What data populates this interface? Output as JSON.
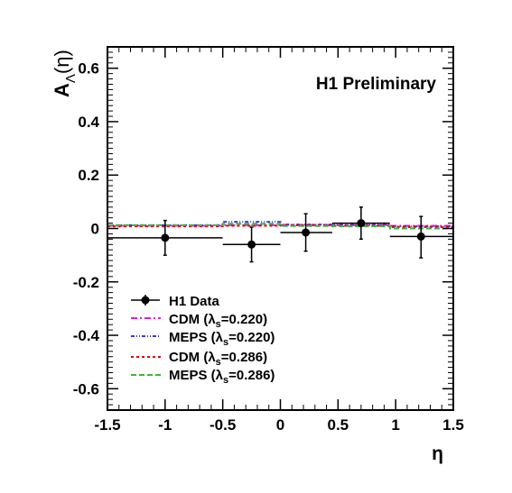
{
  "chart_data": {
    "type": "scatter",
    "annotation": "H1 Preliminary",
    "xlabel": "η",
    "ylabel_main": "A",
    "ylabel_sub": "Λ",
    "ylabel_arg": "(η)",
    "xlim": [
      -1.5,
      1.5
    ],
    "ylim": [
      -0.68,
      0.68
    ],
    "x_ticks": [
      -1.5,
      -1,
      -0.5,
      0,
      0.5,
      1,
      1.5
    ],
    "x_tick_labels": [
      "-1.5",
      "-1",
      "-0.5",
      "0",
      "0.5",
      "1",
      "1.5"
    ],
    "y_ticks": [
      -0.6,
      -0.4,
      -0.2,
      0,
      0.2,
      0.4,
      0.6
    ],
    "y_tick_labels": [
      "-0.6",
      "-0.4",
      "-0.2",
      "0",
      "0.2",
      "0.4",
      "0.6"
    ],
    "grid": false,
    "legend_position": "bottom-left",
    "data": {
      "name": "H1 Data",
      "points": [
        {
          "x": -1.0,
          "y": -0.035,
          "xlo": -1.5,
          "xhi": -0.5,
          "ylo": -0.1,
          "yhi": 0.03
        },
        {
          "x": -0.25,
          "y": -0.06,
          "xlo": -0.5,
          "xhi": 0.0,
          "ylo": -0.125,
          "yhi": 0.005
        },
        {
          "x": 0.22,
          "y": -0.015,
          "xlo": 0.0,
          "xhi": 0.45,
          "ylo": -0.085,
          "yhi": 0.055
        },
        {
          "x": 0.7,
          "y": 0.02,
          "xlo": 0.45,
          "xhi": 0.95,
          "ylo": -0.04,
          "yhi": 0.08
        },
        {
          "x": 1.22,
          "y": -0.03,
          "xlo": 0.95,
          "xhi": 1.5,
          "ylo": -0.11,
          "yhi": 0.045
        }
      ]
    },
    "series": [
      {
        "name": "CDM (λs=0.220)",
        "legend_main": "CDM (λ",
        "legend_sub": "s",
        "legend_tail": "=0.220)",
        "color": "#e020e0",
        "dash": "7,3,2,3",
        "bins": [
          [
            -1.5,
            -0.5,
            0.01
          ],
          [
            -0.5,
            0.0,
            0.012
          ],
          [
            0.0,
            0.45,
            0.013
          ],
          [
            0.45,
            0.95,
            0.012
          ],
          [
            0.95,
            1.5,
            0.01
          ]
        ]
      },
      {
        "name": "MEPS (λs=0.220)",
        "legend_main": "MEPS (λ",
        "legend_sub": "s",
        "legend_tail": "=0.220)",
        "color": "#3a3adc",
        "dash": "4,2,1,2,1,2",
        "bins": [
          [
            -1.5,
            -0.5,
            0.012
          ],
          [
            -0.5,
            0.0,
            0.025
          ],
          [
            0.0,
            0.45,
            0.015
          ],
          [
            0.45,
            0.95,
            0.014
          ],
          [
            0.95,
            1.5,
            0.008
          ]
        ]
      },
      {
        "name": "CDM (λs=0.286)",
        "legend_main": "CDM (λ",
        "legend_sub": "s",
        "legend_tail": "=0.286)",
        "color": "#e80000",
        "dash": "3,3",
        "bins": [
          [
            -1.5,
            -0.5,
            0.008
          ],
          [
            -0.5,
            0.0,
            0.01
          ],
          [
            0.0,
            0.45,
            0.012
          ],
          [
            0.45,
            0.95,
            0.01
          ],
          [
            0.95,
            1.5,
            0.005
          ]
        ]
      },
      {
        "name": "MEPS (λs=0.286)",
        "legend_main": "MEPS (λ",
        "legend_sub": "s",
        "legend_tail": "=0.286)",
        "color": "#3cb43c",
        "dash": "6,3",
        "bins": [
          [
            -1.5,
            -0.5,
            0.012
          ],
          [
            -0.5,
            0.0,
            0.018
          ],
          [
            0.0,
            0.45,
            0.009
          ],
          [
            0.45,
            0.95,
            0.008
          ],
          [
            0.95,
            1.5,
            0.0
          ]
        ]
      }
    ]
  }
}
